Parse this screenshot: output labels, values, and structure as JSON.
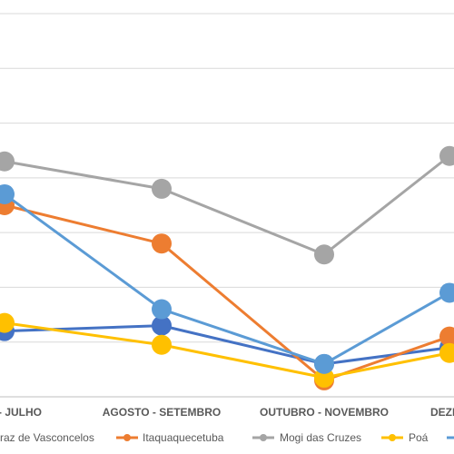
{
  "chart_data": {
    "type": "line",
    "categories": [
      "JUNHO - JULHO",
      "AGOSTO - SETEMBRO",
      "OUTUBRO - NOVEMBRO",
      "DEZEMBRO"
    ],
    "visible_category_labels": [
      "- JULHO",
      "AGOSTO - SETEMBRO",
      "OUTUBRO - NOVEMBRO",
      "DEZE"
    ],
    "series": [
      {
        "name": "Ferraz de Vasconcelos",
        "legend_visible_text": "raz de Vasconcelos",
        "color": "#4472C4",
        "values": [
          1.2,
          1.3,
          0.6,
          0.9
        ]
      },
      {
        "name": "Itaquaquecetuba",
        "color": "#ED7D31",
        "values": [
          3.5,
          2.8,
          0.3,
          1.1
        ]
      },
      {
        "name": "Mogi das Cruzes",
        "color": "#A5A5A5",
        "values": [
          4.3,
          3.8,
          2.6,
          4.4
        ]
      },
      {
        "name": "Poá",
        "color": "#FFC000",
        "values": [
          1.35,
          0.95,
          0.35,
          0.8
        ]
      },
      {
        "name": "",
        "legend_visible_text": "",
        "color": "#5B9BD5",
        "values": [
          3.7,
          1.6,
          0.6,
          1.9
        ]
      }
    ],
    "ylim": [
      0,
      7
    ],
    "grid": true,
    "legend": "bottom"
  }
}
